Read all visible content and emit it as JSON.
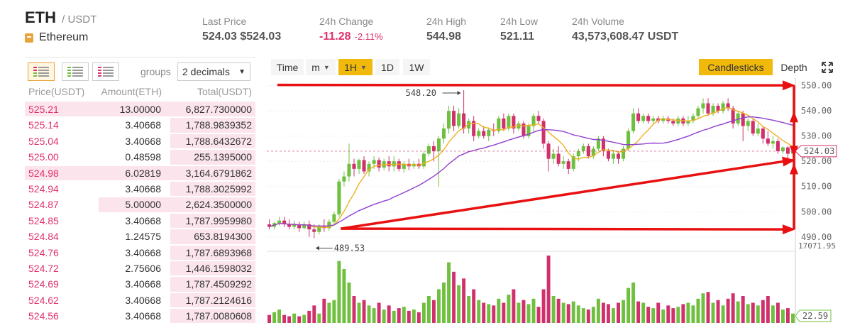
{
  "header": {
    "base": "ETH",
    "quote": "/ USDT",
    "coin_name": "Ethereum",
    "stats": [
      {
        "label": "Last Price",
        "value": "524.03 $524.03"
      },
      {
        "label": "24h Change",
        "value": "-11.28",
        "pct": "-2.11%"
      },
      {
        "label": "24h High",
        "value": "544.98"
      },
      {
        "label": "24h Low",
        "value": "521.11"
      },
      {
        "label": "24h Volume",
        "value": "43,573,608.47 USDT"
      }
    ],
    "accent_color": "#f0b90b",
    "sell_color": "#e0306c",
    "buy_color": "#70c040"
  },
  "orderbook": {
    "groups_label": "groups",
    "decimals_value": "2 decimals",
    "columns": [
      "Price(USDT)",
      "Amount(ETH)",
      "Total(USDT)"
    ],
    "rows": [
      {
        "price": "525.21",
        "amount": "13.00000",
        "total": "6,827.7300000",
        "depth": 1.0
      },
      {
        "price": "525.14",
        "amount": "3.40668",
        "total": "1,788.9839352",
        "depth": 0.37
      },
      {
        "price": "525.04",
        "amount": "3.40668",
        "total": "1,788.6432672",
        "depth": 0.37
      },
      {
        "price": "525.00",
        "amount": "0.48598",
        "total": "255.1395000",
        "depth": 0.37
      },
      {
        "price": "524.98",
        "amount": "6.02819",
        "total": "3,164.6791862",
        "depth": 1.0
      },
      {
        "price": "524.94",
        "amount": "3.40668",
        "total": "1,788.3025992",
        "depth": 0.37
      },
      {
        "price": "524.87",
        "amount": "5.00000",
        "total": "2,624.3500000",
        "depth": 0.68
      },
      {
        "price": "524.85",
        "amount": "3.40668",
        "total": "1,787.9959980",
        "depth": 0.37
      },
      {
        "price": "524.84",
        "amount": "1.24575",
        "total": "653.8194300",
        "depth": 0.37
      },
      {
        "price": "524.76",
        "amount": "3.40668",
        "total": "1,787.6893968",
        "depth": 0.37
      },
      {
        "price": "524.72",
        "amount": "2.75606",
        "total": "1,446.1598032",
        "depth": 0.37
      },
      {
        "price": "524.69",
        "amount": "3.40668",
        "total": "1,787.4509292",
        "depth": 0.37
      },
      {
        "price": "524.62",
        "amount": "3.40668",
        "total": "1,787.2124616",
        "depth": 0.37
      },
      {
        "price": "524.56",
        "amount": "3.40668",
        "total": "1,787.0080608",
        "depth": 0.37
      }
    ]
  },
  "chart_toolbar": {
    "time": "Time",
    "minute": "m",
    "hour": "1H",
    "day": "1D",
    "week": "1W",
    "candlesticks": "Candlesticks",
    "depth": "Depth"
  },
  "chart_data": {
    "type": "candlestick",
    "interval": "1H",
    "y_ticks": [
      490,
      500,
      510,
      520,
      530,
      540,
      550
    ],
    "y_tick_labels": [
      "490.00",
      "500.00",
      "510.00",
      "520.00",
      "530.00",
      "540.00",
      "550.00"
    ],
    "ylim": [
      486,
      553
    ],
    "last_price_label": "524.03",
    "last_price": 524.03,
    "high_annotation": "548.20",
    "high_value": 548.2,
    "low_annotation": "489.53",
    "low_value": 489.53,
    "volume_max_label": "17071.95",
    "volume_last_label": "22.59",
    "up_color": "#70c040",
    "down_color": "#d0306c",
    "ma_fast_color": "#f0b020",
    "ma_slow_color": "#9040d0",
    "annotation_color": "#e81010",
    "candles": [
      {
        "o": 495.0,
        "h": 497.0,
        "c": 494.0,
        "l": 493.0,
        "v": 0.12
      },
      {
        "o": 494.0,
        "h": 496.0,
        "c": 495.5,
        "l": 493.0,
        "v": 0.16
      },
      {
        "o": 495.5,
        "h": 498.0,
        "c": 496.5,
        "l": 494.5,
        "v": 0.2
      },
      {
        "o": 496.5,
        "h": 498.0,
        "c": 495.0,
        "l": 494.0,
        "v": 0.12
      },
      {
        "o": 495.0,
        "h": 497.0,
        "c": 494.0,
        "l": 493.0,
        "v": 0.1
      },
      {
        "o": 494.0,
        "h": 496.5,
        "c": 495.0,
        "l": 493.0,
        "v": 0.14
      },
      {
        "o": 495.0,
        "h": 496.0,
        "c": 493.5,
        "l": 492.0,
        "v": 0.1
      },
      {
        "o": 493.5,
        "h": 496.0,
        "c": 495.0,
        "l": 493.0,
        "v": 0.12
      },
      {
        "o": 495.0,
        "h": 496.5,
        "c": 493.0,
        "l": 490.0,
        "v": 0.18
      },
      {
        "o": 493.0,
        "h": 495.0,
        "c": 492.0,
        "l": 489.53,
        "v": 0.26
      },
      {
        "o": 492.0,
        "h": 495.0,
        "c": 494.5,
        "l": 491.0,
        "v": 0.14
      },
      {
        "o": 494.5,
        "h": 497.0,
        "c": 493.5,
        "l": 492.0,
        "v": 0.36
      },
      {
        "o": 493.5,
        "h": 497.0,
        "c": 496.0,
        "l": 492.5,
        "v": 0.3
      },
      {
        "o": 496.0,
        "h": 500.0,
        "c": 499.0,
        "l": 495.0,
        "v": 0.34
      },
      {
        "o": 499.0,
        "h": 513.0,
        "c": 512.0,
        "l": 498.0,
        "v": 0.92
      },
      {
        "o": 512.0,
        "h": 516.0,
        "c": 514.0,
        "l": 510.0,
        "v": 0.8
      },
      {
        "o": 514.0,
        "h": 527.0,
        "c": 519.0,
        "l": 512.0,
        "v": 0.6
      },
      {
        "o": 519.0,
        "h": 521.0,
        "c": 517.0,
        "l": 514.0,
        "v": 0.4
      },
      {
        "o": 517.0,
        "h": 521.0,
        "c": 520.5,
        "l": 515.0,
        "v": 0.3
      },
      {
        "o": 520.5,
        "h": 522.0,
        "c": 516.0,
        "l": 515.0,
        "v": 0.34
      },
      {
        "o": 516.0,
        "h": 520.0,
        "c": 519.0,
        "l": 514.0,
        "v": 0.26
      },
      {
        "o": 519.0,
        "h": 522.0,
        "c": 520.5,
        "l": 517.0,
        "v": 0.22
      },
      {
        "o": 520.5,
        "h": 521.5,
        "c": 517.5,
        "l": 516.0,
        "v": 0.3
      },
      {
        "o": 517.5,
        "h": 521.0,
        "c": 520.0,
        "l": 516.5,
        "v": 0.2
      },
      {
        "o": 520.0,
        "h": 522.0,
        "c": 518.0,
        "l": 516.0,
        "v": 0.26
      },
      {
        "o": 518.0,
        "h": 522.0,
        "c": 520.0,
        "l": 516.0,
        "v": 0.18
      },
      {
        "o": 520.0,
        "h": 521.0,
        "c": 517.0,
        "l": 516.0,
        "v": 0.22
      },
      {
        "o": 517.0,
        "h": 520.0,
        "c": 519.0,
        "l": 515.5,
        "v": 0.24
      },
      {
        "o": 519.0,
        "h": 521.0,
        "c": 518.0,
        "l": 516.5,
        "v": 0.18
      },
      {
        "o": 518.0,
        "h": 520.0,
        "c": 519.0,
        "l": 517.0,
        "v": 0.2
      },
      {
        "o": 519.0,
        "h": 521.0,
        "c": 518.0,
        "l": 517.0,
        "v": 0.16
      },
      {
        "o": 518.0,
        "h": 524.0,
        "c": 523.0,
        "l": 517.0,
        "v": 0.3
      },
      {
        "o": 523.0,
        "h": 527.0,
        "c": 526.0,
        "l": 522.0,
        "v": 0.4
      },
      {
        "o": 526.0,
        "h": 528.0,
        "c": 524.0,
        "l": 520.0,
        "v": 0.34
      },
      {
        "o": 524.0,
        "h": 530.0,
        "c": 529.0,
        "l": 510.0,
        "v": 0.5
      },
      {
        "o": 529.0,
        "h": 535.0,
        "c": 533.0,
        "l": 527.0,
        "v": 0.6
      },
      {
        "o": 533.0,
        "h": 542.0,
        "c": 540.0,
        "l": 531.0,
        "v": 0.9
      },
      {
        "o": 540.0,
        "h": 542.0,
        "c": 534.0,
        "l": 532.0,
        "v": 0.76
      },
      {
        "o": 534.0,
        "h": 541.0,
        "c": 539.0,
        "l": 533.0,
        "v": 0.56
      },
      {
        "o": 539.0,
        "h": 548.2,
        "c": 533.0,
        "l": 531.0,
        "v": 0.66
      },
      {
        "o": 533.0,
        "h": 537.0,
        "c": 536.0,
        "l": 531.0,
        "v": 0.4
      },
      {
        "o": 536.0,
        "h": 538.0,
        "c": 530.0,
        "l": 528.0,
        "v": 0.5
      },
      {
        "o": 530.0,
        "h": 533.0,
        "c": 532.0,
        "l": 529.0,
        "v": 0.34
      },
      {
        "o": 532.0,
        "h": 534.0,
        "c": 530.0,
        "l": 529.0,
        "v": 0.3
      },
      {
        "o": 530.0,
        "h": 533.0,
        "c": 532.5,
        "l": 528.0,
        "v": 0.28
      },
      {
        "o": 532.5,
        "h": 535.0,
        "c": 532.0,
        "l": 530.0,
        "v": 0.26
      },
      {
        "o": 532.0,
        "h": 538.0,
        "c": 537.0,
        "l": 531.0,
        "v": 0.36
      },
      {
        "o": 537.0,
        "h": 539.0,
        "c": 533.0,
        "l": 532.0,
        "v": 0.3
      },
      {
        "o": 533.0,
        "h": 539.0,
        "c": 538.0,
        "l": 532.0,
        "v": 0.42
      },
      {
        "o": 538.0,
        "h": 539.0,
        "c": 533.0,
        "l": 531.0,
        "v": 0.5
      },
      {
        "o": 533.0,
        "h": 536.0,
        "c": 535.0,
        "l": 532.0,
        "v": 0.3
      },
      {
        "o": 535.0,
        "h": 536.0,
        "c": 530.0,
        "l": 529.0,
        "v": 0.34
      },
      {
        "o": 530.0,
        "h": 535.0,
        "c": 534.0,
        "l": 529.0,
        "v": 0.28
      },
      {
        "o": 534.0,
        "h": 539.0,
        "c": 538.0,
        "l": 532.0,
        "v": 0.36
      },
      {
        "o": 538.0,
        "h": 540.0,
        "c": 536.0,
        "l": 535.0,
        "v": 0.24
      },
      {
        "o": 536.0,
        "h": 537.0,
        "c": 527.0,
        "l": 525.0,
        "v": 0.5
      },
      {
        "o": 527.0,
        "h": 528.0,
        "c": 521.0,
        "l": 516.0,
        "v": 1.0
      },
      {
        "o": 521.0,
        "h": 525.0,
        "c": 523.0,
        "l": 519.0,
        "v": 0.4
      },
      {
        "o": 523.0,
        "h": 526.0,
        "c": 519.0,
        "l": 518.0,
        "v": 0.36
      },
      {
        "o": 519.0,
        "h": 522.0,
        "c": 520.0,
        "l": 517.0,
        "v": 0.3
      },
      {
        "o": 520.0,
        "h": 521.0,
        "c": 517.0,
        "l": 515.0,
        "v": 0.28
      },
      {
        "o": 517.0,
        "h": 523.0,
        "c": 522.0,
        "l": 516.0,
        "v": 0.32
      },
      {
        "o": 522.0,
        "h": 525.0,
        "c": 524.0,
        "l": 520.0,
        "v": 0.26
      },
      {
        "o": 524.0,
        "h": 527.0,
        "c": 526.0,
        "l": 523.0,
        "v": 0.22
      },
      {
        "o": 526.0,
        "h": 527.0,
        "c": 522.0,
        "l": 521.0,
        "v": 0.2
      },
      {
        "o": 522.0,
        "h": 526.0,
        "c": 525.0,
        "l": 521.0,
        "v": 0.24
      },
      {
        "o": 525.0,
        "h": 530.0,
        "c": 529.0,
        "l": 524.0,
        "v": 0.36
      },
      {
        "o": 529.0,
        "h": 530.0,
        "c": 524.0,
        "l": 522.0,
        "v": 0.3
      },
      {
        "o": 524.0,
        "h": 525.0,
        "c": 521.0,
        "l": 520.0,
        "v": 0.28
      },
      {
        "o": 521.0,
        "h": 524.0,
        "c": 523.0,
        "l": 519.0,
        "v": 0.22
      },
      {
        "o": 523.0,
        "h": 524.0,
        "c": 521.0,
        "l": 519.0,
        "v": 0.3
      },
      {
        "o": 521.0,
        "h": 526.0,
        "c": 525.0,
        "l": 520.0,
        "v": 0.34
      },
      {
        "o": 525.0,
        "h": 533.0,
        "c": 532.0,
        "l": 524.0,
        "v": 0.52
      },
      {
        "o": 532.0,
        "h": 541.0,
        "c": 539.0,
        "l": 531.0,
        "v": 0.6
      },
      {
        "o": 539.0,
        "h": 541.0,
        "c": 536.0,
        "l": 535.0,
        "v": 0.32
      },
      {
        "o": 536.0,
        "h": 539.0,
        "c": 538.0,
        "l": 535.0,
        "v": 0.3
      },
      {
        "o": 538.0,
        "h": 539.0,
        "c": 536.0,
        "l": 535.0,
        "v": 0.24
      },
      {
        "o": 536.0,
        "h": 538.0,
        "c": 537.0,
        "l": 535.0,
        "v": 0.22
      },
      {
        "o": 537.0,
        "h": 538.0,
        "c": 536.0,
        "l": 535.0,
        "v": 0.3
      },
      {
        "o": 536.0,
        "h": 538.0,
        "c": 537.0,
        "l": 535.0,
        "v": 0.2
      },
      {
        "o": 537.0,
        "h": 538.0,
        "c": 536.0,
        "l": 535.0,
        "v": 0.26
      },
      {
        "o": 536.0,
        "h": 537.0,
        "c": 535.0,
        "l": 534.0,
        "v": 0.22
      },
      {
        "o": 535.0,
        "h": 538.0,
        "c": 537.0,
        "l": 534.0,
        "v": 0.24
      },
      {
        "o": 537.0,
        "h": 538.0,
        "c": 535.0,
        "l": 534.0,
        "v": 0.28
      },
      {
        "o": 535.0,
        "h": 538.0,
        "c": 536.0,
        "l": 534.0,
        "v": 0.3
      },
      {
        "o": 536.0,
        "h": 539.0,
        "c": 538.0,
        "l": 535.0,
        "v": 0.26
      },
      {
        "o": 538.0,
        "h": 542.0,
        "c": 541.0,
        "l": 537.0,
        "v": 0.36
      },
      {
        "o": 541.0,
        "h": 545.0,
        "c": 543.0,
        "l": 539.0,
        "v": 0.44
      },
      {
        "o": 543.0,
        "h": 545.0,
        "c": 539.0,
        "l": 538.0,
        "v": 0.46
      },
      {
        "o": 539.0,
        "h": 543.0,
        "c": 542.0,
        "l": 538.0,
        "v": 0.3
      },
      {
        "o": 542.0,
        "h": 543.0,
        "c": 540.0,
        "l": 539.0,
        "v": 0.34
      },
      {
        "o": 540.0,
        "h": 544.0,
        "c": 543.0,
        "l": 539.0,
        "v": 0.26
      },
      {
        "o": 543.0,
        "h": 544.98,
        "c": 541.0,
        "l": 540.0,
        "v": 0.36
      },
      {
        "o": 541.0,
        "h": 542.0,
        "c": 535.0,
        "l": 533.0,
        "v": 0.44
      },
      {
        "o": 535.0,
        "h": 540.0,
        "c": 539.0,
        "l": 534.0,
        "v": 0.32
      },
      {
        "o": 539.0,
        "h": 540.0,
        "c": 534.0,
        "l": 528.0,
        "v": 0.4
      },
      {
        "o": 534.0,
        "h": 537.0,
        "c": 536.0,
        "l": 532.0,
        "v": 0.28
      },
      {
        "o": 536.0,
        "h": 537.0,
        "c": 531.0,
        "l": 530.0,
        "v": 0.3
      },
      {
        "o": 531.0,
        "h": 535.0,
        "c": 533.0,
        "l": 530.0,
        "v": 0.26
      },
      {
        "o": 533.0,
        "h": 534.0,
        "c": 529.0,
        "l": 527.0,
        "v": 0.34
      },
      {
        "o": 529.0,
        "h": 532.0,
        "c": 527.0,
        "l": 526.0,
        "v": 0.4
      },
      {
        "o": 527.0,
        "h": 530.0,
        "c": 528.0,
        "l": 525.0,
        "v": 0.26
      },
      {
        "o": 528.0,
        "h": 529.0,
        "c": 524.0,
        "l": 523.0,
        "v": 0.3
      },
      {
        "o": 524.0,
        "h": 526.0,
        "c": 525.5,
        "l": 523.0,
        "v": 0.2
      },
      {
        "o": 525.5,
        "h": 526.0,
        "c": 523.0,
        "l": 521.11,
        "v": 0.22
      },
      {
        "o": 523.0,
        "h": 525.0,
        "c": 524.03,
        "l": 522.0,
        "v": 0.14
      }
    ],
    "annotations": {
      "top_line": [
        [
          550.3,
          0.02
        ],
        [
          550.1,
          1.0
        ]
      ],
      "bottom_line": [
        [
          493.3,
          0.14
        ],
        [
          493.0,
          1.0
        ]
      ],
      "rising_line": [
        [
          493.3,
          0.14
        ],
        [
          520.5,
          1.0
        ]
      ]
    }
  }
}
